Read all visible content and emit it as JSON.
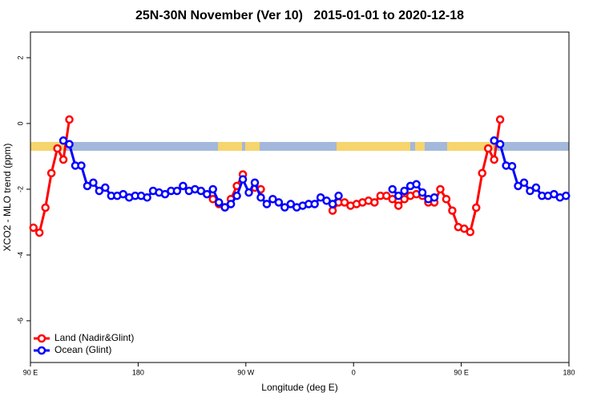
{
  "chart_data": {
    "type": "line",
    "title": "25N-30N November (Ver 10)   2015-01-01 to 2020-12-18",
    "x_label": "Longitude (deg E)",
    "y_label": "XCO2 - MLO trend (ppm)",
    "xlim": [
      90,
      540
    ],
    "ylim": [
      -7.27,
      2.78
    ],
    "xticks": [
      {
        "value": 90,
        "label": "90 E"
      },
      180,
      {
        "value": 270,
        "label": "90 W"
      },
      {
        "value": 360,
        "label": "0"
      },
      {
        "value": 450,
        "label": "90 E"
      },
      {
        "value": 540,
        "label": "180"
      }
    ],
    "yticks": [
      2,
      0,
      -2,
      -4,
      -6
    ],
    "legend": "bottom-left",
    "x": [
      92.5,
      97.5,
      102.5,
      107.5,
      112.5,
      117.5,
      122.5,
      127.5,
      132.5,
      137.5,
      142.5,
      147.5,
      152.5,
      157.5,
      162.5,
      167.5,
      172.5,
      177.5,
      182.5,
      187.5,
      192.5,
      197.5,
      202.5,
      207.5,
      212.5,
      217.5,
      222.5,
      227.5,
      232.5,
      237.5,
      242.5,
      247.5,
      252.5,
      257.5,
      262.5,
      267.5,
      272.5,
      277.5,
      282.5,
      287.5,
      292.5,
      297.5,
      302.5,
      307.5,
      312.5,
      317.5,
      322.5,
      327.5,
      332.5,
      337.5,
      342.5,
      347.5,
      352.5,
      357.5,
      362.5,
      367.5,
      372.5,
      377.5,
      382.5,
      387.5,
      392.5,
      397.5,
      402.5,
      407.5,
      412.5,
      417.5,
      422.5,
      427.5,
      432.5,
      437.5,
      442.5,
      447.5,
      452.5,
      457.5,
      462.5,
      467.5,
      472.5,
      477.5,
      482.5,
      487.5,
      492.5,
      497.5,
      502.5,
      507.5,
      512.5,
      517.5,
      522.5,
      527.5,
      532.5,
      537.5
    ],
    "series": [
      {
        "name": "Land (Nadir&Glint)",
        "color": "#ff0000",
        "values": [
          -3.17,
          -3.32,
          -2.56,
          -1.51,
          -0.76,
          -1.1,
          0.12,
          null,
          null,
          null,
          null,
          null,
          null,
          null,
          null,
          null,
          null,
          null,
          null,
          null,
          null,
          null,
          null,
          null,
          null,
          null,
          null,
          null,
          null,
          null,
          -2.3,
          -2.45,
          -2.55,
          -2.3,
          -1.9,
          -1.55,
          null,
          -1.95,
          -2.0,
          null,
          null,
          null,
          null,
          null,
          null,
          null,
          null,
          null,
          null,
          null,
          -2.65,
          -2.4,
          -2.4,
          -2.5,
          -2.45,
          -2.4,
          -2.35,
          -2.4,
          -2.2,
          -2.2,
          -2.3,
          -2.5,
          -2.3,
          -2.2,
          -2.15,
          -2.2,
          -2.4,
          -2.4,
          -2.0,
          -2.3,
          -2.65,
          -3.15,
          -3.2,
          -3.3,
          -2.56,
          -1.51,
          -0.76,
          -1.1,
          0.12,
          null,
          null,
          null,
          null,
          null,
          null,
          null,
          null,
          null,
          null,
          null
        ]
      },
      {
        "name": "Ocean (Glint)",
        "color": "#0000ff",
        "values": [
          null,
          null,
          null,
          null,
          null,
          -0.52,
          -0.63,
          -1.28,
          -1.28,
          -1.9,
          -1.8,
          -2.05,
          -1.95,
          -2.2,
          -2.2,
          -2.15,
          -2.25,
          -2.2,
          -2.2,
          -2.25,
          -2.05,
          -2.1,
          -2.15,
          -2.05,
          -2.05,
          -1.9,
          -2.05,
          -2.0,
          -2.05,
          -2.15,
          -2.0,
          -2.4,
          -2.55,
          -2.45,
          -2.2,
          -1.7,
          -2.1,
          -1.8,
          -2.25,
          -2.45,
          -2.3,
          -2.4,
          -2.55,
          -2.45,
          -2.55,
          -2.5,
          -2.45,
          -2.45,
          -2.25,
          -2.35,
          -2.45,
          -2.2,
          null,
          null,
          null,
          null,
          null,
          null,
          null,
          null,
          -2.0,
          -2.2,
          -2.05,
          -1.9,
          -1.85,
          -2.1,
          -2.3,
          -2.25,
          null,
          null,
          null,
          null,
          null,
          null,
          null,
          null,
          null,
          -0.52,
          -0.63,
          -1.28,
          -1.3,
          -1.9,
          -1.8,
          -2.05,
          -1.95,
          -2.2,
          -2.2,
          -2.15,
          -2.25,
          -2.2
        ]
      }
    ]
  }
}
